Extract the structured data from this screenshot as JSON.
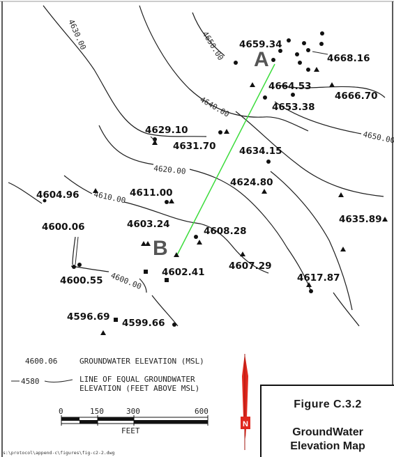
{
  "contour_labels": {
    "c4630": "4630.00",
    "c4650_top": "4650.00",
    "c4640": "4640.00",
    "c4650_right": "4650.00",
    "c4620": "4620.00",
    "c4610": "4610.00",
    "c4600": "4600.00"
  },
  "wells": {
    "w1": "4659.34",
    "w2": "4668.16",
    "w3": "4664.53",
    "w4": "4666.70",
    "w5": "4653.38",
    "w6": "4629.10",
    "w7": "4631.70",
    "w8": "4634.15",
    "w9": "4624.80",
    "w10": "4604.96",
    "w11": "4611.00",
    "w12": "4600.06",
    "w13": "4603.24",
    "w14": "4608.28",
    "w15": "4635.89",
    "w16": "4600.55",
    "w17": "4602.41",
    "w18": "4607.29",
    "w19": "4617.87",
    "w20": "4596.69",
    "w21": "4599.66"
  },
  "section": {
    "start_label": "A",
    "end_label": "B"
  },
  "legend": {
    "sample_value": "4600.06",
    "sample_desc": "GROUNDWATER ELEVATION (MSL)",
    "contour_value": "4580",
    "contour_desc_1": "LINE OF EQUAL GROUNDWATER",
    "contour_desc_2": "ELEVATION (FEET ABOVE MSL)"
  },
  "scale": {
    "t0": "0",
    "t150": "150",
    "t300": "300",
    "t600": "600",
    "unit": "FEET"
  },
  "title_block": {
    "figure_number": "Figure  C.3.2",
    "title_line1": "GroundWater",
    "title_line2": "Elevation Map"
  },
  "north_arrow_label": "N",
  "file_path": "s:\\protocol\\append-c\\figures\\fig-c2-2.dwg",
  "colors": {
    "section_line": "#3cdc3c",
    "north_arrow": "#e0281e"
  }
}
